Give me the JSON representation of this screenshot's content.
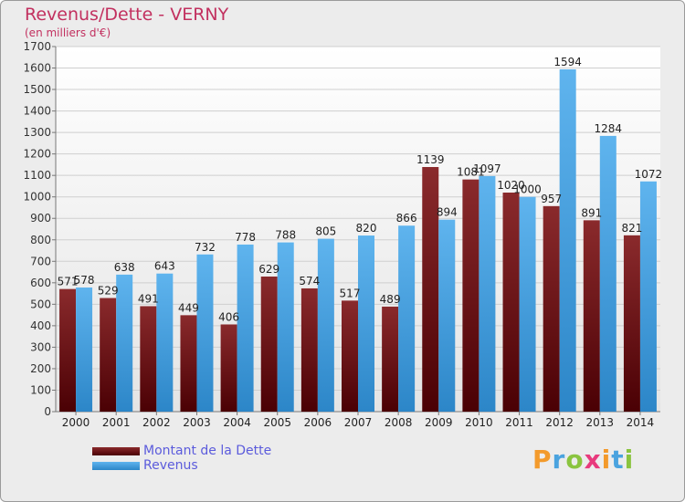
{
  "chart_data": {
    "type": "bar",
    "title": "Revenus/Dette - VERNY",
    "subtitle": "(en milliers d'€)",
    "categories": [
      "2000",
      "2001",
      "2002",
      "2003",
      "2004",
      "2005",
      "2006",
      "2007",
      "2008",
      "2009",
      "2010",
      "2011",
      "2012",
      "2013",
      "2014"
    ],
    "series": [
      {
        "name": "Montant de la Dette",
        "color": "#7a0f12",
        "values": [
          571,
          529,
          491,
          449,
          406,
          629,
          574,
          517,
          489,
          1139,
          1081,
          1020,
          957,
          891,
          821
        ]
      },
      {
        "name": "Revenus",
        "color": "#4da6e6",
        "values": [
          578,
          638,
          643,
          732,
          778,
          788,
          805,
          820,
          866,
          894,
          1097,
          1000,
          1594,
          1284,
          1072
        ]
      }
    ],
    "ylim": [
      0,
      1700
    ],
    "yticks": [
      0,
      100,
      200,
      300,
      400,
      500,
      600,
      700,
      800,
      900,
      1000,
      1100,
      1200,
      1300,
      1400,
      1500,
      1600,
      1700
    ],
    "grid": true,
    "legend_position": "bottom-left"
  },
  "logo": {
    "letters": [
      "P",
      "r",
      "o",
      "x",
      "i",
      "t",
      "i"
    ],
    "colors": [
      "#f39a2b",
      "#4aa3df",
      "#8ac43f",
      "#e83a7d",
      "#f39a2b",
      "#4aa3df",
      "#8ac43f"
    ]
  }
}
